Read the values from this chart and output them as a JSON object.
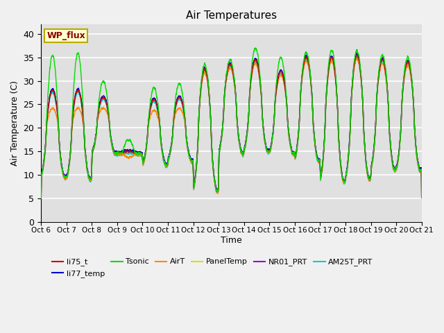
{
  "title": "Air Temperatures",
  "xlabel": "Time",
  "ylabel": "Air Temperature (C)",
  "ylim": [
    0,
    42
  ],
  "yticks": [
    0,
    5,
    10,
    15,
    20,
    25,
    30,
    35,
    40
  ],
  "plot_bg": "#e0e0e0",
  "fig_bg": "#f0f0f0",
  "legend_box_color": "#ffffcc",
  "legend_box_edge": "#bbaa00",
  "legend_label_color": "#8b0000",
  "wp_flux_label": "WP_flux",
  "series_colors": {
    "li75_t": "#cc0000",
    "li77_temp": "#0000cc",
    "Tsonic": "#00dd00",
    "AirT": "#ff8800",
    "PanelTemp": "#dddd00",
    "NR01_PRT": "#9900cc",
    "AM25T_PRT": "#00cccc"
  },
  "x_start": 6.0,
  "x_end": 21.0,
  "xtick_positions": [
    6,
    7,
    8,
    9,
    10,
    11,
    12,
    13,
    14,
    15,
    16,
    17,
    18,
    19,
    20,
    21
  ],
  "xtick_labels": [
    "Oct 6",
    "Oct 7",
    "Oct 8",
    "Oct 9",
    "Oct 10",
    "Oct 11",
    "Oct 12",
    "Oct 13",
    "Oct 14",
    "Oct 15",
    "Oct 16",
    "Oct 17",
    "Oct 18",
    "Oct 19",
    "Oct 20",
    "Oct 21"
  ]
}
